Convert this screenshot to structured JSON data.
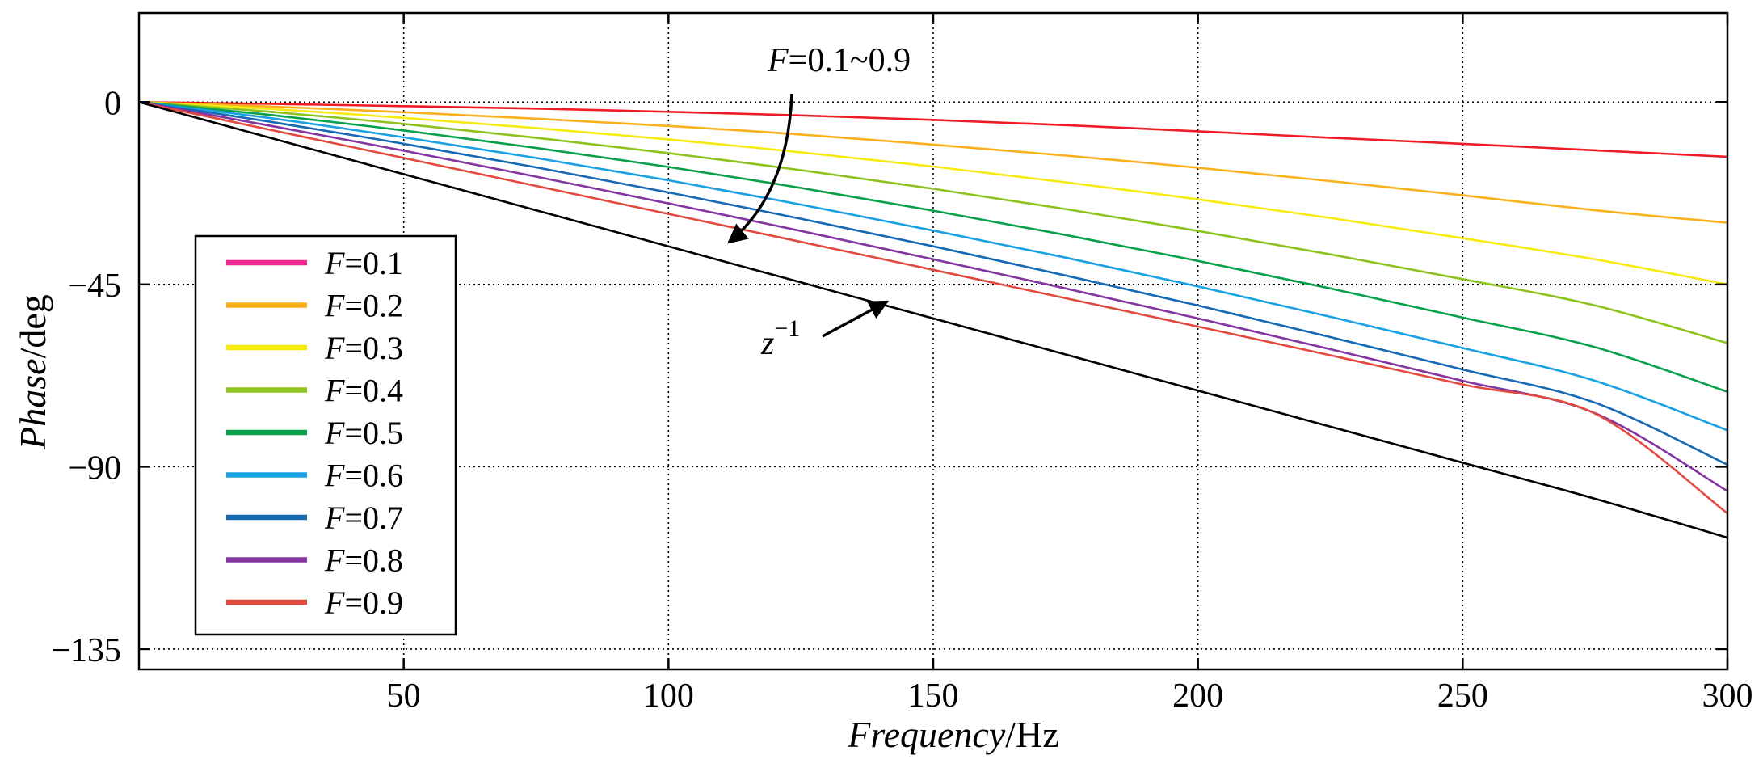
{
  "chart_data": {
    "type": "line",
    "title": "",
    "xlabel": {
      "italic": "Frequency",
      "normal": "/Hz"
    },
    "ylabel": {
      "italic": "Phase",
      "normal": "/deg"
    },
    "xlim": [
      0,
      300
    ],
    "ylim": [
      -140,
      22
    ],
    "x_ticks": [
      50,
      100,
      150,
      200,
      250,
      300
    ],
    "x_tick_labels": [
      "50",
      "100",
      "150",
      "200",
      "250",
      "300"
    ],
    "y_ticks": [
      0,
      -45,
      -90,
      -135
    ],
    "y_tick_labels": [
      "0",
      "−45",
      "−90",
      "−135"
    ],
    "grid": true,
    "legend_position": "left",
    "x": [
      0,
      25,
      50,
      75,
      100,
      125,
      150,
      175,
      200,
      225,
      250,
      275,
      300
    ],
    "series": [
      {
        "name": "F=0.1",
        "legend_var": "F",
        "legend_val": "=0.1",
        "color": "#ee1c25",
        "legend_color": "#ed2891",
        "values": [
          0,
          -0.45,
          -1.0,
          -1.6,
          -2.4,
          -3.3,
          -4.4,
          -5.7,
          -7.2,
          -8.8,
          -10.3,
          -11.9,
          -13.5
        ]
      },
      {
        "name": "F=0.2",
        "legend_var": "F",
        "legend_val": "=0.2",
        "color": "#fbb11c",
        "legend_color": "#fbb11c",
        "values": [
          0,
          -1.1,
          -2.5,
          -4.1,
          -5.9,
          -8.0,
          -10.5,
          -13.2,
          -16.2,
          -19.5,
          -23.0,
          -26.7,
          -29.8
        ]
      },
      {
        "name": "F=0.3",
        "legend_var": "F",
        "legend_val": "=0.3",
        "color": "#f7ea10",
        "legend_color": "#f7ea10",
        "values": [
          0,
          -1.7,
          -3.9,
          -6.4,
          -9.2,
          -12.4,
          -15.9,
          -19.8,
          -24.0,
          -28.6,
          -33.6,
          -38.8,
          -45.0
        ]
      },
      {
        "name": "F=0.4",
        "legend_var": "F",
        "legend_val": "=0.4",
        "color": "#8dc21f",
        "legend_color": "#8dc21f",
        "values": [
          0,
          -2.4,
          -5.4,
          -8.8,
          -12.6,
          -16.8,
          -21.4,
          -26.4,
          -31.8,
          -37.6,
          -43.7,
          -50.2,
          -59.5
        ]
      },
      {
        "name": "F=0.5",
        "legend_var": "F",
        "legend_val": "=0.5",
        "color": "#08a04b",
        "legend_color": "#08a04b",
        "values": [
          0,
          -3.2,
          -7.0,
          -11.3,
          -16.0,
          -21.2,
          -26.8,
          -32.8,
          -39.2,
          -46.0,
          -53.2,
          -60.5,
          -71.5
        ]
      },
      {
        "name": "F=0.6",
        "legend_var": "F",
        "legend_val": "=0.6",
        "color": "#1aa1e4",
        "legend_color": "#1aa1e4",
        "values": [
          0,
          -4.0,
          -8.7,
          -13.8,
          -19.3,
          -25.3,
          -31.7,
          -38.4,
          -45.5,
          -53.0,
          -60.7,
          -68.8,
          -81.0
        ]
      },
      {
        "name": "F=0.7",
        "legend_var": "F",
        "legend_val": "=0.7",
        "color": "#1569b5",
        "legend_color": "#1569b5",
        "values": [
          0,
          -4.9,
          -10.3,
          -16.1,
          -22.3,
          -28.8,
          -35.6,
          -42.8,
          -50.2,
          -58.0,
          -66.0,
          -74.2,
          -89.5
        ]
      },
      {
        "name": "F=0.8",
        "legend_var": "F",
        "legend_val": "=0.8",
        "color": "#8435a2",
        "legend_color": "#8435a2",
        "values": [
          0,
          -5.9,
          -12.0,
          -18.4,
          -25.0,
          -31.8,
          -38.8,
          -46.0,
          -53.4,
          -61.0,
          -68.8,
          -76.8,
          -96.0
        ]
      },
      {
        "name": "F=0.9",
        "legend_var": "F",
        "legend_val": "=0.9",
        "color": "#e34a3f",
        "legend_color": "#e34a3f",
        "values": [
          0,
          -6.9,
          -13.8,
          -20.7,
          -27.6,
          -34.5,
          -41.4,
          -48.4,
          -55.4,
          -62.5,
          -69.7,
          -76.9,
          -101.5
        ]
      },
      {
        "name": "z^-1",
        "color": "#000000",
        "in_legend": false,
        "values": [
          0,
          -8.9,
          -17.8,
          -26.7,
          -35.6,
          -44.5,
          -53.4,
          -62.3,
          -71.2,
          -80.1,
          -89.0,
          -97.9,
          -107.5
        ]
      }
    ],
    "annotations": [
      {
        "name": "F-range-annotation",
        "text_var": "F",
        "text_rest": "=0.1~0.9",
        "points_to": "F=0.1 to F=0.9 curves",
        "arrow_to": [
          112,
          -35
        ]
      },
      {
        "name": "z-inverse-annotation",
        "text_base": "z",
        "text_sup": "−1",
        "points_to": "z^-1 curve",
        "arrow_to": [
          143,
          -50
        ]
      }
    ]
  }
}
